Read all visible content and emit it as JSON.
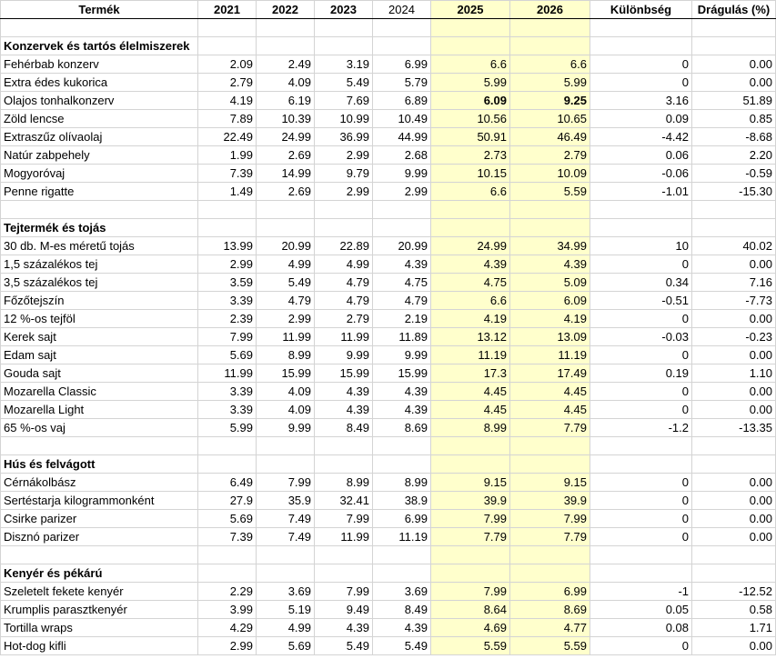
{
  "columns": {
    "product": "Termék",
    "y2021": "2021",
    "y2022": "2022",
    "y2023": "2023",
    "y2024": "2024",
    "y2025": "2025",
    "y2026": "2026",
    "diff": "Különbség",
    "pct": "Drágulás (%)"
  },
  "rows": [
    {
      "type": "blank"
    },
    {
      "type": "cat",
      "name": "Konzervek és tartós élelmiszerek"
    },
    {
      "type": "item",
      "name": "Fehérbab konzerv",
      "v": [
        "2.09",
        "2.49",
        "3.19",
        "6.99",
        "6.6",
        "6.6",
        "0",
        "0.00"
      ]
    },
    {
      "type": "item",
      "name": "Extra édes kukorica",
      "v": [
        "2.79",
        "4.09",
        "5.49",
        "5.79",
        "5.99",
        "5.99",
        "0",
        "0.00"
      ]
    },
    {
      "type": "item",
      "name": "Olajos tonhalkonzerv",
      "v": [
        "4.19",
        "6.19",
        "7.69",
        "6.89",
        "6.09",
        "9.25",
        "3.16",
        "51.89"
      ],
      "bold": true
    },
    {
      "type": "item",
      "name": "Zöld lencse",
      "v": [
        "7.89",
        "10.39",
        "10.99",
        "10.49",
        "10.56",
        "10.65",
        "0.09",
        "0.85"
      ]
    },
    {
      "type": "item",
      "name": "Extraszűz olívaolaj",
      "v": [
        "22.49",
        "24.99",
        "36.99",
        "44.99",
        "50.91",
        "46.49",
        "-4.42",
        "-8.68"
      ]
    },
    {
      "type": "item",
      "name": "Natúr zabpehely",
      "v": [
        "1.99",
        "2.69",
        "2.99",
        "2.68",
        "2.73",
        "2.79",
        "0.06",
        "2.20"
      ]
    },
    {
      "type": "item",
      "name": "Mogyoróvaj",
      "v": [
        "7.39",
        "14.99",
        "9.79",
        "9.99",
        "10.15",
        "10.09",
        "-0.06",
        "-0.59"
      ]
    },
    {
      "type": "item",
      "name": "Penne rigatte",
      "v": [
        "1.49",
        "2.69",
        "2.99",
        "2.99",
        "6.6",
        "5.59",
        "-1.01",
        "-15.30"
      ]
    },
    {
      "type": "blank"
    },
    {
      "type": "cat",
      "name": "Tejtermék és tojás"
    },
    {
      "type": "item",
      "name": "30 db. M-es méretű tojás",
      "v": [
        "13.99",
        "20.99",
        "22.89",
        "20.99",
        "24.99",
        "34.99",
        "10",
        "40.02"
      ]
    },
    {
      "type": "item",
      "name": "1,5 százalékos tej",
      "v": [
        "2.99",
        "4.99",
        "4.99",
        "4.39",
        "4.39",
        "4.39",
        "0",
        "0.00"
      ]
    },
    {
      "type": "item",
      "name": "3,5 százalékos tej",
      "v": [
        "3.59",
        "5.49",
        "4.79",
        "4.75",
        "4.75",
        "5.09",
        "0.34",
        "7.16"
      ]
    },
    {
      "type": "item",
      "name": "Főzőtejszín",
      "v": [
        "3.39",
        "4.79",
        "4.79",
        "4.79",
        "6.6",
        "6.09",
        "-0.51",
        "-7.73"
      ]
    },
    {
      "type": "item",
      "name": "12 %-os tejföl",
      "v": [
        "2.39",
        "2.99",
        "2.79",
        "2.19",
        "4.19",
        "4.19",
        "0",
        "0.00"
      ]
    },
    {
      "type": "item",
      "name": "Kerek sajt",
      "v": [
        "7.99",
        "11.99",
        "11.99",
        "11.89",
        "13.12",
        "13.09",
        "-0.03",
        "-0.23"
      ]
    },
    {
      "type": "item",
      "name": "Edam sajt",
      "v": [
        "5.69",
        "8.99",
        "9.99",
        "9.99",
        "11.19",
        "11.19",
        "0",
        "0.00"
      ]
    },
    {
      "type": "item",
      "name": "Gouda sajt",
      "v": [
        "11.99",
        "15.99",
        "15.99",
        "15.99",
        "17.3",
        "17.49",
        "0.19",
        "1.10"
      ]
    },
    {
      "type": "item",
      "name": "Mozarella Classic",
      "v": [
        "3.39",
        "4.09",
        "4.39",
        "4.39",
        "4.45",
        "4.45",
        "0",
        "0.00"
      ]
    },
    {
      "type": "item",
      "name": "Mozarella Light",
      "v": [
        "3.39",
        "4.09",
        "4.39",
        "4.39",
        "4.45",
        "4.45",
        "0",
        "0.00"
      ]
    },
    {
      "type": "item",
      "name": "65 %-os vaj",
      "v": [
        "5.99",
        "9.99",
        "8.49",
        "8.69",
        "8.99",
        "7.79",
        "-1.2",
        "-13.35"
      ]
    },
    {
      "type": "blank"
    },
    {
      "type": "cat",
      "name": "Hús és felvágott"
    },
    {
      "type": "item",
      "name": "Cérnákolbász",
      "v": [
        "6.49",
        "7.99",
        "8.99",
        "8.99",
        "9.15",
        "9.15",
        "0",
        "0.00"
      ]
    },
    {
      "type": "item",
      "name": "Sertéstarja kilogrammonként",
      "v": [
        "27.9",
        "35.9",
        "32.41",
        "38.9",
        "39.9",
        "39.9",
        "0",
        "0.00"
      ]
    },
    {
      "type": "item",
      "name": "Csirke parizer",
      "v": [
        "5.69",
        "7.49",
        "7.99",
        "6.99",
        "7.99",
        "7.99",
        "0",
        "0.00"
      ]
    },
    {
      "type": "item",
      "name": "Disznó parizer",
      "v": [
        "7.39",
        "7.49",
        "11.99",
        "11.19",
        "7.79",
        "7.79",
        "0",
        "0.00"
      ]
    },
    {
      "type": "blank"
    },
    {
      "type": "cat",
      "name": "Kenyér és pékárú"
    },
    {
      "type": "item",
      "name": "Szeletelt fekete kenyér",
      "v": [
        "2.29",
        "3.69",
        "7.99",
        "3.69",
        "7.99",
        "6.99",
        "-1",
        "-12.52"
      ]
    },
    {
      "type": "item",
      "name": "Krumplis parasztkenyér",
      "v": [
        "3.99",
        "5.19",
        "9.49",
        "8.49",
        "8.64",
        "8.69",
        "0.05",
        "0.58"
      ]
    },
    {
      "type": "item",
      "name": "Tortilla wraps",
      "v": [
        "4.29",
        "4.99",
        "4.39",
        "4.39",
        "4.69",
        "4.77",
        "0.08",
        "1.71"
      ]
    },
    {
      "type": "item",
      "name": "Hot-dog kifli",
      "v": [
        "2.99",
        "5.69",
        "5.49",
        "5.49",
        "5.59",
        "5.59",
        "0",
        "0.00"
      ]
    }
  ]
}
